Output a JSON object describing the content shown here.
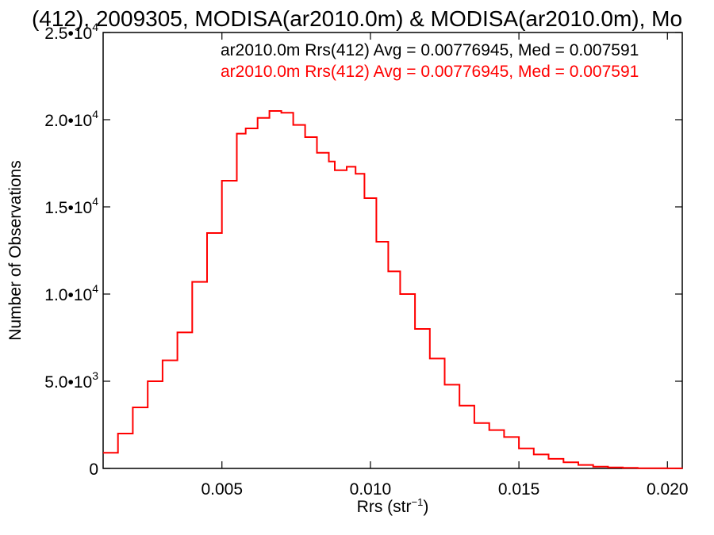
{
  "chart_data": {
    "type": "line",
    "title": "(412), 2009305, MODISA(ar2010.0m) & MODISA(ar2010.0m), Mo",
    "xlabel": "Rrs (str",
    "xlabel_sup": "−1",
    "xlabel_close": ")",
    "ylabel": "Number of Observations",
    "xlim": [
      0.001,
      0.0205
    ],
    "ylim": [
      0,
      25000
    ],
    "grid": false,
    "x_ticks": [
      {
        "value": 0.005,
        "label": "0.005"
      },
      {
        "value": 0.01,
        "label": "0.010"
      },
      {
        "value": 0.015,
        "label": "0.015"
      },
      {
        "value": 0.02,
        "label": "0.020"
      }
    ],
    "y_ticks": [
      {
        "value": 0,
        "label": "0",
        "sup": ""
      },
      {
        "value": 5000,
        "label": "5.0•10",
        "sup": "3"
      },
      {
        "value": 10000,
        "label": "1.0•10",
        "sup": "4"
      },
      {
        "value": 15000,
        "label": "1.5•10",
        "sup": "4"
      },
      {
        "value": 20000,
        "label": "2.0•10",
        "sup": "4"
      },
      {
        "value": 25000,
        "label": "2.5•10",
        "sup": "4"
      }
    ],
    "legend": [
      {
        "text": "ar2010.0m Rrs(412) Avg = 0.00776945, Med = 0.007591",
        "color": "#000000"
      },
      {
        "text": "ar2010.0m Rrs(412) Avg = 0.00776945, Med = 0.007591",
        "color": "#ff0000"
      }
    ],
    "series": [
      {
        "color": "#ff0000",
        "style": "step",
        "x": [
          0.001,
          0.0015,
          0.002,
          0.0025,
          0.003,
          0.0035,
          0.004,
          0.0045,
          0.005,
          0.0055,
          0.0058,
          0.0062,
          0.0066,
          0.0068,
          0.007,
          0.0074,
          0.0078,
          0.0082,
          0.0086,
          0.0088,
          0.0092,
          0.0095,
          0.0098,
          0.0102,
          0.0106,
          0.011,
          0.0115,
          0.012,
          0.0125,
          0.013,
          0.0135,
          0.014,
          0.0145,
          0.015,
          0.0155,
          0.016,
          0.0165,
          0.017,
          0.0175,
          0.018,
          0.0185,
          0.019,
          0.0195,
          0.02,
          0.0205
        ],
        "y": [
          900,
          2000,
          3500,
          5000,
          6200,
          7800,
          10700,
          13500,
          16500,
          19200,
          19500,
          20100,
          20500,
          20500,
          20400,
          19700,
          19000,
          18100,
          17600,
          17100,
          17300,
          16900,
          15500,
          13000,
          11300,
          10000,
          8000,
          6300,
          4800,
          3600,
          2600,
          2200,
          1800,
          1150,
          800,
          550,
          350,
          200,
          100,
          60,
          30,
          15,
          8,
          4,
          2
        ]
      }
    ]
  }
}
